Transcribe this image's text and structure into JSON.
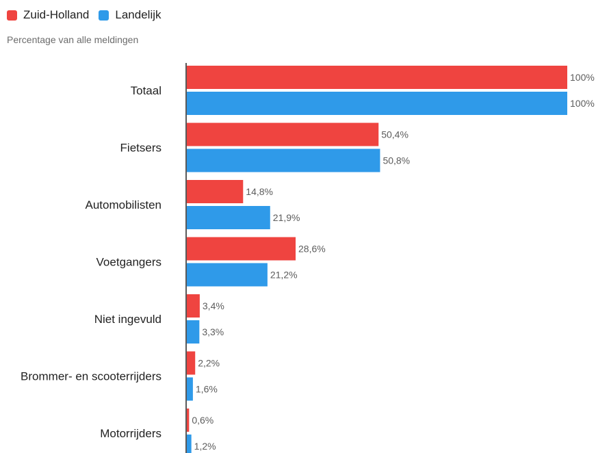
{
  "legend": {
    "series": [
      {
        "name": "Zuid-Holland",
        "color": "#ef4440"
      },
      {
        "name": "Landelijk",
        "color": "#2f9ae9"
      }
    ]
  },
  "subtitle": "Percentage van alle meldingen",
  "chart_data": {
    "type": "bar",
    "orientation": "horizontal",
    "subtitle": "Percentage van alle meldingen",
    "categories": [
      "Totaal",
      "Fietsers",
      "Automobilisten",
      "Voetgangers",
      "Niet ingevuld",
      "Brommer- en scooterrijders",
      "Motorrijders"
    ],
    "series": [
      {
        "name": "Zuid-Holland",
        "color": "#ef4440",
        "values": [
          100,
          50.4,
          14.8,
          28.6,
          3.4,
          2.2,
          0.6
        ],
        "labels": [
          "100%",
          "50,4%",
          "14,8%",
          "28,6%",
          "3,4%",
          "2,2%",
          "0,6%"
        ]
      },
      {
        "name": "Landelijk",
        "color": "#2f9ae9",
        "values": [
          100,
          50.8,
          21.9,
          21.2,
          3.3,
          1.6,
          1.2
        ],
        "labels": [
          "100%",
          "50,8%",
          "21,9%",
          "21,2%",
          "3,3%",
          "1,6%",
          "1,2%"
        ]
      }
    ],
    "xlim": [
      0,
      100
    ],
    "grid": false,
    "legend_position": "top-left"
  }
}
